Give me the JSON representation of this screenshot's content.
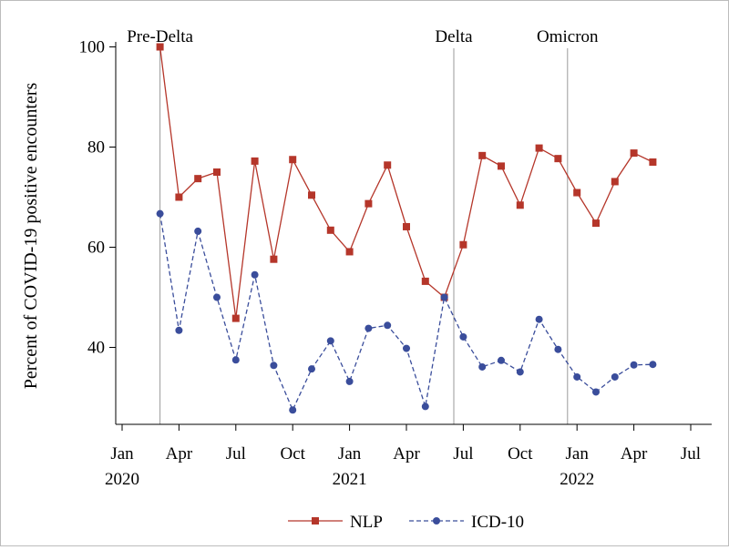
{
  "chart_data": {
    "type": "line",
    "title": "",
    "xlabel": "",
    "ylabel": "Percent of COVID-19 positive encounters",
    "ylim": [
      25,
      100
    ],
    "yticks": [
      40,
      60,
      80,
      100
    ],
    "x_start": {
      "year": 2020,
      "month": 1
    },
    "xticks": [
      {
        "label": "Jan",
        "year_label": "2020",
        "month_index": 0
      },
      {
        "label": "Apr",
        "year_label": "",
        "month_index": 3
      },
      {
        "label": "Jul",
        "year_label": "",
        "month_index": 6
      },
      {
        "label": "Oct",
        "year_label": "",
        "month_index": 9
      },
      {
        "label": "Jan",
        "year_label": "2021",
        "month_index": 12
      },
      {
        "label": "Apr",
        "year_label": "",
        "month_index": 15
      },
      {
        "label": "Jul",
        "year_label": "",
        "month_index": 18
      },
      {
        "label": "Oct",
        "year_label": "",
        "month_index": 21
      },
      {
        "label": "Jan",
        "year_label": "2022",
        "month_index": 24
      },
      {
        "label": "Apr",
        "year_label": "",
        "month_index": 27
      },
      {
        "label": "Jul",
        "year_label": "",
        "month_index": 30
      }
    ],
    "x_month_index": [
      2,
      3,
      4,
      5,
      6,
      7,
      8,
      9,
      10,
      11,
      12,
      13,
      14,
      15,
      16,
      17,
      18,
      19,
      20,
      21,
      22,
      23,
      24,
      25,
      26,
      27,
      28
    ],
    "periods": [
      {
        "label": "Pre-Delta",
        "month_index": 2
      },
      {
        "label": "Delta",
        "month_index": 17.5
      },
      {
        "label": "Omicron",
        "month_index": 23.5
      }
    ],
    "series": [
      {
        "name": "NLP",
        "color": "#b5362a",
        "marker": "square",
        "line_style": "solid",
        "values": [
          100,
          70,
          73.7,
          75,
          45.8,
          77.2,
          57.6,
          77.5,
          70.4,
          63.4,
          59.1,
          68.7,
          76.4,
          64.1,
          53.2,
          50.0,
          60.5,
          78.3,
          76.2,
          68.4,
          79.8,
          77.7,
          70.9,
          64.8,
          73.1,
          78.8,
          77.0
        ]
      },
      {
        "name": "ICD-10",
        "color": "#3a4d9b",
        "marker": "circle",
        "line_style": "dashed",
        "values": [
          66.7,
          43.4,
          63.2,
          50.0,
          37.5,
          54.5,
          36.4,
          27.5,
          35.7,
          41.3,
          33.2,
          43.8,
          44.4,
          39.8,
          28.2,
          50.0,
          42.1,
          36.1,
          37.4,
          35.1,
          45.6,
          39.6,
          34.1,
          31.1,
          34.1,
          36.5,
          36.6
        ]
      }
    ],
    "legend_position": "bottom"
  }
}
